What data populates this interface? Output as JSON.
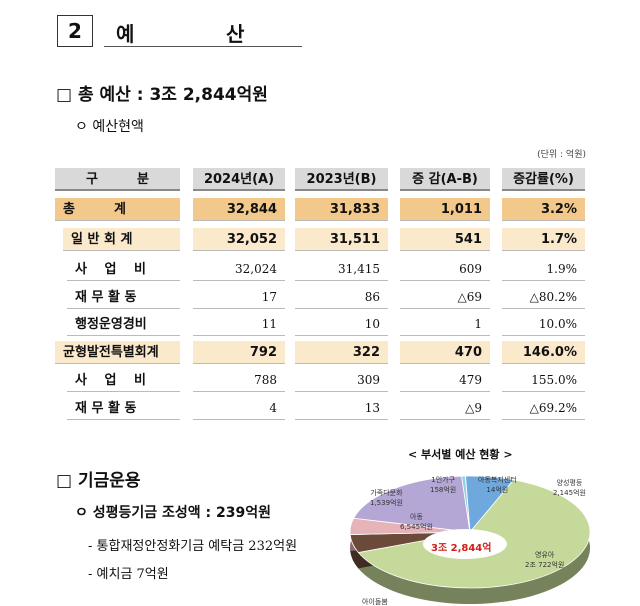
{
  "section": {
    "number": "2",
    "title_chars": [
      "예",
      "산"
    ]
  },
  "total_budget": "□ 총 예산 : 3조 2,844억원",
  "budget_status": "ㅇ 예산현액",
  "unit": "(단위 : 억원)",
  "table": {
    "headers": [
      "구　　　분",
      "2024년(A)",
      "2023년(B)",
      "증 감(A-B)",
      "증감률(%)"
    ],
    "rows": [
      {
        "label": "총　　　계",
        "cells": [
          "32,844",
          "31,833",
          "1,011",
          "3.2%"
        ],
        "style": "tot"
      },
      {
        "label": "일 반 회 계",
        "cells": [
          "32,052",
          "31,511",
          "541",
          "1.7%"
        ],
        "style": "sub"
      },
      {
        "label": "사　 업　 비",
        "cells": [
          "32,024",
          "31,415",
          "609",
          "1.9%"
        ],
        "style": "plain"
      },
      {
        "label": "재 무 활 동",
        "cells": [
          "17",
          "86",
          "△69",
          "△80.2%"
        ],
        "style": "plain"
      },
      {
        "label": "행정운영경비",
        "cells": [
          "11",
          "10",
          "1",
          "10.0%"
        ],
        "style": "plain"
      },
      {
        "label": "균형발전특별회계",
        "cells": [
          "792",
          "322",
          "470",
          "146.0%"
        ],
        "style": "sub"
      },
      {
        "label": "사　 업　 비",
        "cells": [
          "788",
          "309",
          "479",
          "155.0%"
        ],
        "style": "plain"
      },
      {
        "label": "재 무 활 동",
        "cells": [
          "4",
          "13",
          "△9",
          "△69.2%"
        ],
        "style": "plain"
      }
    ]
  },
  "fund": {
    "title": "□ 기금운용",
    "item": "ㅇ 성평등기금 조성액 : 239억원",
    "sub_items": [
      "- 통합재정안정화기금 예탁금 232억원",
      "- 예치금 7억원"
    ]
  },
  "chart_data": {
    "type": "pie",
    "title": "< 부서별 예산 현황 >",
    "center_label": "3조 2,844억",
    "unit": "억원",
    "total": 32844,
    "slices": [
      {
        "name": "아동복지센터",
        "label": "14억원",
        "value": 14,
        "color": "#d9b38c"
      },
      {
        "name": "양성평등",
        "label": "2,145억원",
        "value": 2145,
        "color": "#6fa8dc"
      },
      {
        "name": "영유아",
        "label": "2조 722억원",
        "value": 20722,
        "color": "#c5d99a"
      },
      {
        "name": "아이돌봄",
        "label": "",
        "value": null,
        "color": "#6b4a3a"
      },
      {
        "name": "가족다문화",
        "label": "1,539억원",
        "value": 1539,
        "color": "#e6b3b8"
      },
      {
        "name": "아동",
        "label": "6,545억원",
        "value": 6545,
        "color": "#b4a7d6"
      },
      {
        "name": "1인가구",
        "label": "158억원",
        "value": 158,
        "color": "#8fd0e3"
      }
    ]
  }
}
